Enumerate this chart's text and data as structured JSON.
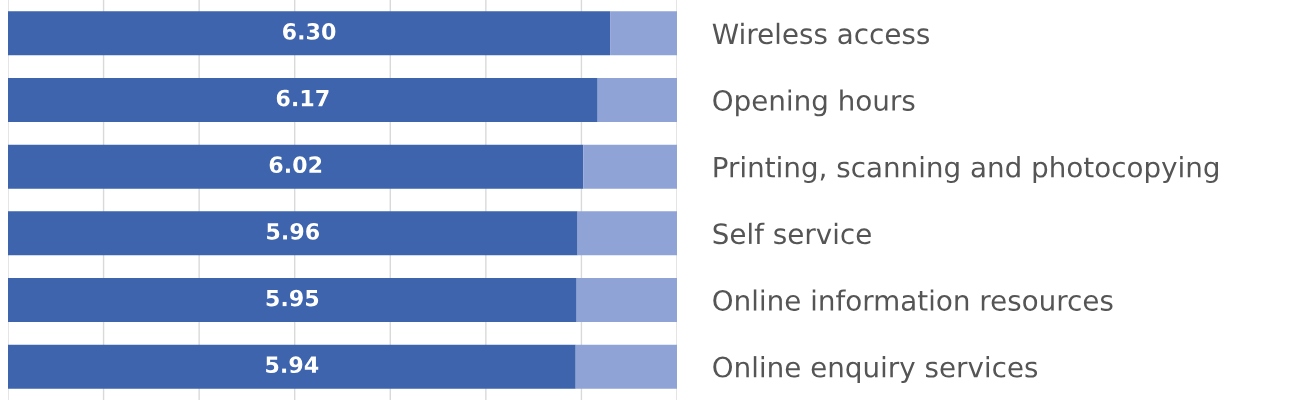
{
  "chart_data": {
    "type": "bar",
    "orientation": "horizontal",
    "stacked": true,
    "categories": [
      "Wireless access",
      "Opening hours",
      "Printing, scanning and photocopying",
      "Self service",
      "Online information resources",
      "Online enquiry services"
    ],
    "series": [
      {
        "color": "#3d64ad",
        "values": [
          6.3,
          6.17,
          6.02,
          5.96,
          5.95,
          5.94
        ],
        "value_labels": [
          "6.30",
          "6.17",
          "6.02",
          "5.96",
          "5.95",
          "5.94"
        ]
      },
      {
        "color": "#8fa3d6",
        "values": [
          0.7,
          0.83,
          0.98,
          1.04,
          1.05,
          1.06
        ]
      }
    ],
    "xlim": [
      0,
      7
    ],
    "xticks": [
      {
        "value": 0,
        "label": null
      },
      {
        "value": 1,
        "label": null
      },
      {
        "value": 2,
        "label": null
      },
      {
        "value": 3,
        "label": null
      },
      {
        "value": 4,
        "label": null
      },
      {
        "value": 5,
        "label": null
      },
      {
        "value": 6,
        "label": null
      },
      {
        "value": 7,
        "label": null
      }
    ],
    "grid": "x",
    "tick_labels": "y",
    "legend": false
  }
}
